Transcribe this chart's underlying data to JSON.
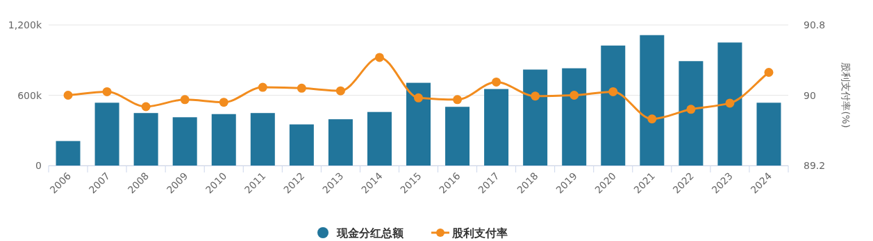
{
  "chart_data": {
    "type": "bar",
    "categories": [
      "2006",
      "2007",
      "2008",
      "2009",
      "2010",
      "2011",
      "2012",
      "2013",
      "2014",
      "2015",
      "2016",
      "2017",
      "2018",
      "2019",
      "2020",
      "2021",
      "2022",
      "2023",
      "2024"
    ],
    "series": [
      {
        "name": "现金分红总额",
        "color": "#21759b",
        "values": [
          209000,
          536000,
          448000,
          412000,
          439000,
          448000,
          351000,
          395000,
          457000,
          706000,
          501000,
          653000,
          819000,
          830000,
          1024000,
          1113000,
          891000,
          1050000,
          536000
        ]
      },
      {
        "name": "股利支付率",
        "type": "line",
        "axis": "y2",
        "color": "#f28c1e",
        "values": [
          90.0,
          90.04,
          89.87,
          89.95,
          89.92,
          90.09,
          90.08,
          90.05,
          90.43,
          89.97,
          89.95,
          90.15,
          89.99,
          90.0,
          90.04,
          89.73,
          89.84,
          89.91,
          90.26
        ]
      }
    ],
    "ylim": [
      0,
      1200000
    ],
    "yticks": [
      {
        "value": 0,
        "label": "0"
      },
      {
        "value": 600000,
        "label": "600k"
      },
      {
        "value": 1200000,
        "label": "1,200k"
      }
    ],
    "y2lim": [
      89.2,
      90.8
    ],
    "y2ticks": [
      89.2,
      90,
      90.8
    ],
    "y2label": "股利支付率(%)",
    "grid": "y",
    "legend": "bottom",
    "marker": "circle"
  }
}
